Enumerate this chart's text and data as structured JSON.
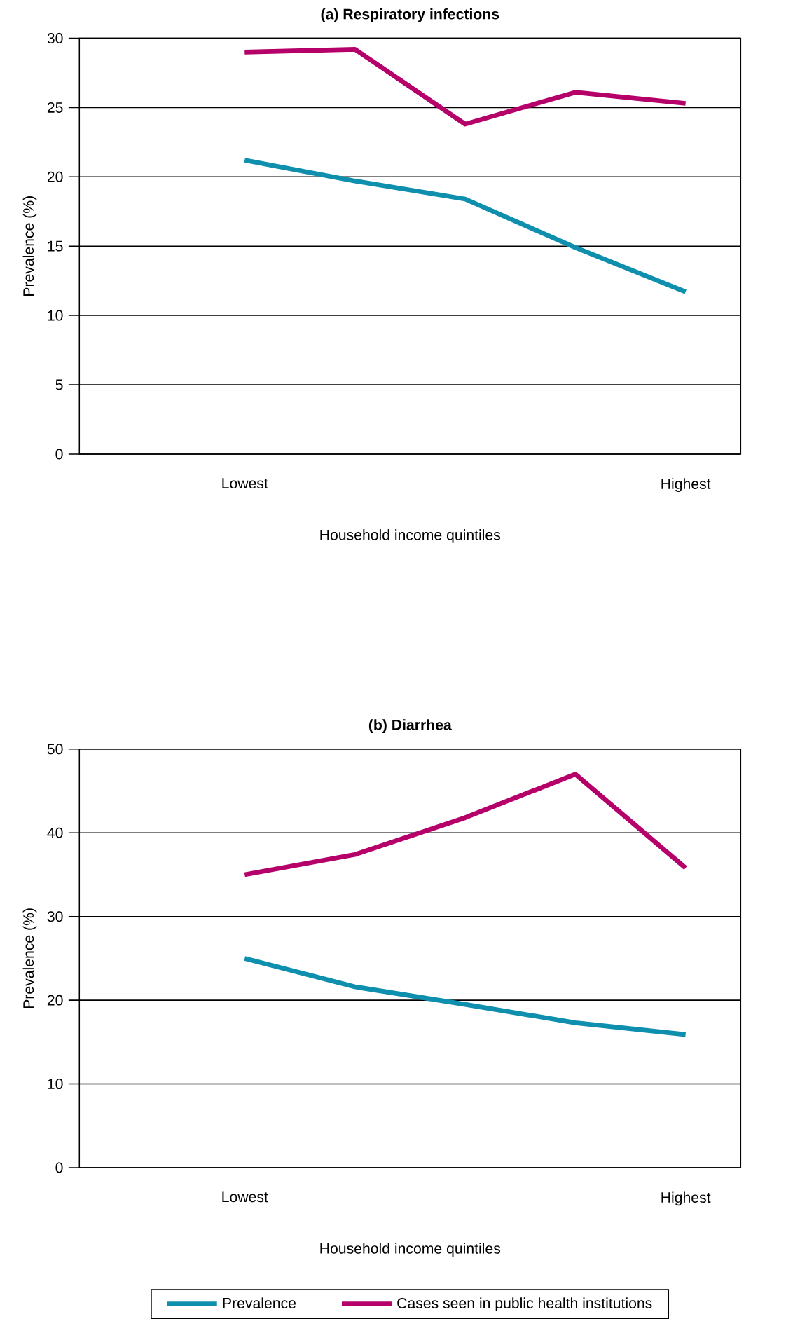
{
  "chart_data": [
    {
      "type": "line",
      "title": "(a) Respiratory infections",
      "xlabel": "Household income quintiles",
      "ylabel": "Prevalence (%)",
      "categories": [
        "Lowest",
        null,
        null,
        null,
        "Highest"
      ],
      "ylim": [
        0,
        30
      ],
      "yticks": [
        0,
        5,
        10,
        15,
        20,
        25,
        30
      ],
      "grid": "y",
      "marker": "none",
      "line_style": "solid",
      "series": [
        {
          "color": "#0f8fae",
          "values": [
            21.2,
            19.7,
            18.4,
            14.9,
            11.7
          ]
        },
        {
          "color": "#b5006a",
          "values": [
            29.0,
            29.2,
            23.8,
            26.1,
            25.3
          ]
        }
      ]
    },
    {
      "type": "line",
      "title": "(b) Diarrhea",
      "xlabel": "Household income quintiles",
      "ylabel": "Prevalence (%)",
      "categories": [
        "Lowest",
        null,
        null,
        null,
        "Highest"
      ],
      "ylim": [
        0,
        50
      ],
      "yticks": [
        0,
        10,
        20,
        30,
        40,
        50
      ],
      "grid": "y",
      "marker": "none",
      "line_style": "solid",
      "legend": "bottom",
      "series": [
        {
          "name": "Prevalence",
          "color": "#0f8fae",
          "values": [
            25.0,
            21.6,
            19.5,
            17.3,
            15.9
          ]
        },
        {
          "name": "Cases seen in public health institutions",
          "color": "#b5006a",
          "values": [
            35.0,
            37.4,
            41.8,
            47.0,
            35.8
          ]
        }
      ]
    }
  ]
}
